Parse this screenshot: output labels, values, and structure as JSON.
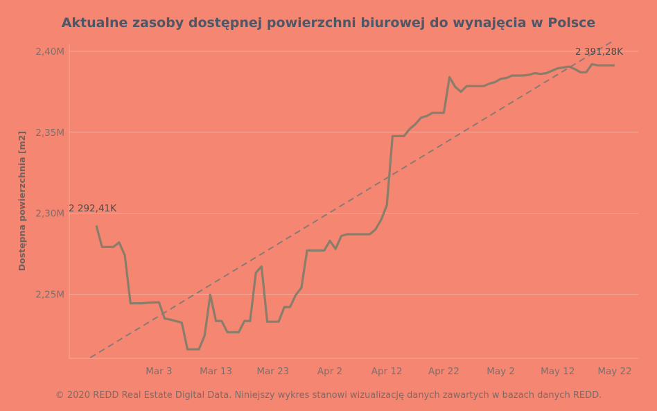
{
  "chart_data": {
    "type": "line",
    "title": "Aktualne zasoby dostępnej powierzchni biurowej do wynajęcia w Polsce",
    "ylabel": "Dostępna powierzchnia [m2]",
    "xlabel": "",
    "x_ticks": [
      "Mar 3",
      "Mar 13",
      "Mar 23",
      "Apr 2",
      "Apr 12",
      "Apr 22",
      "May 2",
      "May 12",
      "May 22"
    ],
    "y_ticks": [
      "2,25M",
      "2,30M",
      "2,35M",
      "2,40M"
    ],
    "y_tick_values": [
      2250,
      2300,
      2350,
      2400
    ],
    "ylim": [
      2204,
      2406
    ],
    "xlim_days": [
      -11,
      86
    ],
    "x_start": "2020-02-21",
    "grid": true,
    "series": [
      {
        "name": "",
        "unit": "K m2",
        "color": "#8a7d6a",
        "x": [
          0,
          1,
          2,
          3,
          4,
          5,
          6,
          7,
          8,
          9,
          10,
          11,
          12,
          13,
          14,
          15,
          16,
          17,
          18,
          19,
          20,
          21,
          22,
          23,
          24,
          25,
          26,
          27,
          28,
          29,
          30,
          31,
          32,
          33,
          34,
          35,
          36,
          37,
          38,
          39,
          40,
          41,
          42,
          43,
          44,
          45,
          46,
          47,
          48,
          49,
          50,
          51,
          52,
          53,
          54,
          55,
          56,
          57,
          58,
          59,
          60,
          61,
          62,
          63,
          64,
          65,
          66,
          67,
          68,
          69,
          70,
          71,
          72,
          73,
          74,
          75,
          76,
          77,
          78,
          79,
          80,
          81,
          82,
          83,
          84,
          85,
          86,
          87,
          88,
          89,
          90,
          91
        ],
        "y": [
          2292.41,
          2279.2,
          2279.2,
          2279.2,
          2282.0,
          2274.0,
          2244.4,
          2244.4,
          2244.4,
          2244.7,
          2244.9,
          2245.0,
          2235.0,
          2234.3,
          2233.4,
          2232.4,
          2216.0,
          2216.0,
          2216.0,
          2224.4,
          2249.7,
          2233.5,
          2233.5,
          2226.5,
          2226.5,
          2226.5,
          2233.5,
          2233.5,
          2263.3,
          2267.2,
          2233.0,
          2233.0,
          2233.0,
          2242.1,
          2242.1,
          2249.5,
          2254.0,
          2277.0,
          2277.0,
          2277.0,
          2277.0,
          2283.0,
          2278.0,
          2286.0,
          2287.0,
          2287.0,
          2287.0,
          2287.0,
          2287.0,
          2290.0,
          2296.0,
          2305.0,
          2347.6,
          2347.6,
          2347.6,
          2352.0,
          2355.0,
          2359.0,
          2360.0,
          2362.0,
          2362.0,
          2362.0,
          2384.0,
          2378.0,
          2375.0,
          2378.5,
          2378.5,
          2378.5,
          2378.5,
          2380.0,
          2381.0,
          2383.0,
          2383.5,
          2385.0,
          2385.0,
          2385.0,
          2385.5,
          2386.5,
          2386.0,
          2386.5,
          2388.0,
          2389.5,
          2390.0,
          2390.5,
          2389.0,
          2387.0,
          2387.0,
          2392.0,
          2391.28,
          2391.28,
          2391.28,
          2391.28
        ]
      }
    ],
    "trend": {
      "from": [
        -1,
        2204
      ],
      "to": [
        92,
        2406
      ],
      "style": "dashed"
    },
    "annotations": [
      "2 292,41K",
      "2 391,28K"
    ]
  },
  "footer": "© 2020 REDD Real Estate Digital Data. Niniejszy wykres stanowi wizualizację danych zawartych w bazach danych REDD.",
  "colors": {
    "background": "#f48672",
    "line": "#8a7d6a",
    "trend": "#8a7a73",
    "title": "#4e5766",
    "grid": "#f8a997"
  }
}
